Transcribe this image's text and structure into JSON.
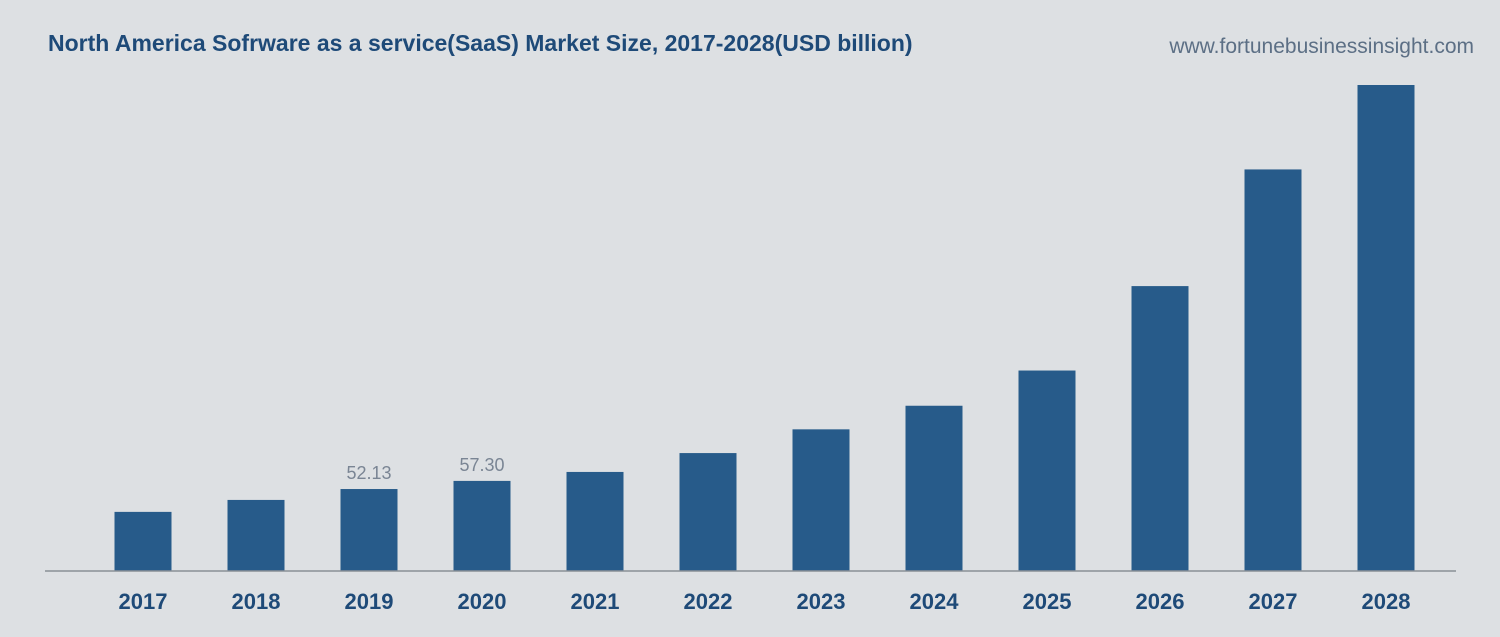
{
  "header": {
    "title": "North America Sofrware as a service(SaaS) Market Size, 2017-2028(USD billion)",
    "source": "www.fortunebusinessinsight.com"
  },
  "colors": {
    "bar": "#275b8a",
    "axis": "#8a8f96",
    "background": "#dde0e3",
    "title": "#1e4a78",
    "data_label": "#7a8594"
  },
  "chart_data": {
    "type": "bar",
    "title": "North America Sofrware as a service(SaaS) Market Size, 2017-2028(USD billion)",
    "xlabel": "",
    "ylabel": "",
    "categories": [
      "2017",
      "2018",
      "2019",
      "2020",
      "2021",
      "2022",
      "2023",
      "2024",
      "2025",
      "2026",
      "2027",
      "2028"
    ],
    "values": [
      37.6,
      45.2,
      52.13,
      57.3,
      63.0,
      75.0,
      90.1,
      105.1,
      127.5,
      181.2,
      255.4,
      309.1
    ],
    "data_labels": [
      "",
      "",
      "52.13",
      "57.30",
      "",
      "",
      "",
      "",
      "",
      "",
      "",
      ""
    ],
    "ylim": [
      0,
      309.1
    ],
    "grid": false,
    "legend": "none"
  }
}
